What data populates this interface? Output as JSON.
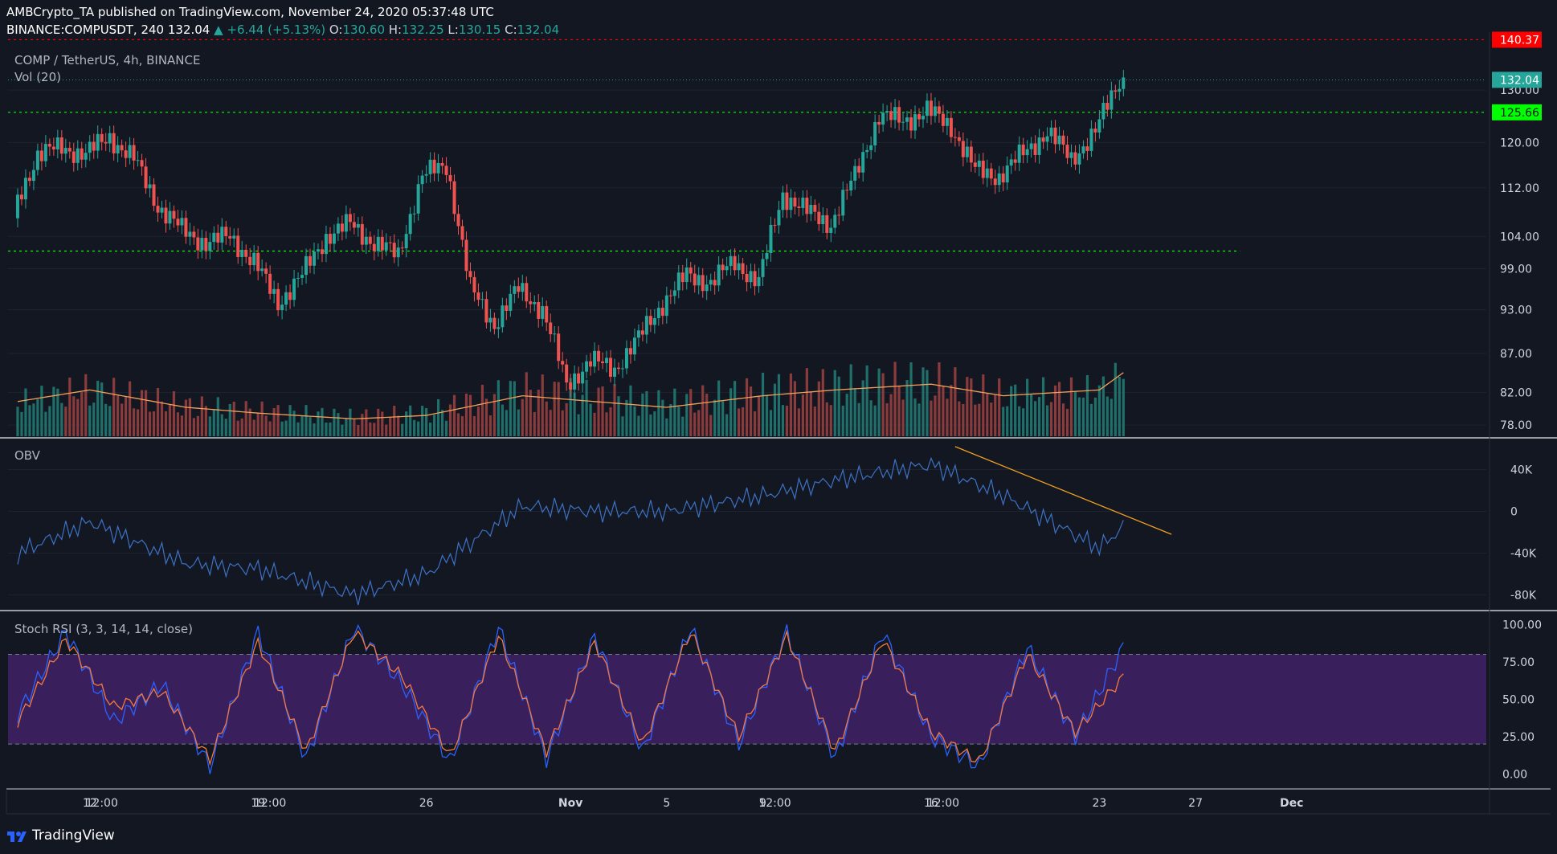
{
  "header": {
    "publisher": "AMBCrypto_TA published on TradingView.com, November 24, 2020 05:37:48 UTC",
    "symbol": "BINANCE:COMPUSDT, 240",
    "last": "132.04",
    "change": "▲ +6.44 (+5.13%)",
    "o_label": "O:",
    "o": "130.60",
    "h_label": "H:",
    "h": "132.25",
    "l_label": "L:",
    "l": "130.15",
    "c_label": "C:",
    "c": "132.04"
  },
  "main_pane": {
    "title": "COMP / TetherUS, 4h, BINANCE",
    "vol_label": "Vol (20)"
  },
  "obv_pane": {
    "label": "OBV"
  },
  "stoch_pane": {
    "label": "Stoch RSI (3, 3, 14, 14, close)"
  },
  "footer": {
    "brand": "TradingView"
  },
  "colors": {
    "bg": "#131722",
    "up": "#26a69a",
    "down": "#ef5350",
    "green_line": "#00ff00",
    "red_line": "#ff0000",
    "obv": "#3d72c5",
    "stoch_k": "#2962ff",
    "stoch_d": "#f5793b",
    "band": "#3a1f5d",
    "vol_ma": "#f0a05a",
    "trend": "#f0a020"
  },
  "chart_data": [
    {
      "type": "candlestick",
      "title": "COMP / TetherUS, 4h, BINANCE",
      "x_tick_labels": [
        "12",
        "12:00",
        "19",
        "12:00",
        "26",
        "Nov",
        "5",
        "9",
        "12:00",
        "16",
        "12:00",
        "23",
        "27",
        "Dec"
      ],
      "y_tick_labels": [
        78,
        82,
        87,
        93,
        99,
        104,
        112,
        120,
        130
      ],
      "ylim": [
        76.5,
        142
      ],
      "scale": "log",
      "horizontal_levels": [
        {
          "label": "140.37",
          "value": 140.37,
          "color": "#ff0000"
        },
        {
          "label": "125.66",
          "value": 125.66,
          "color": "#00ff00"
        },
        {
          "label": "",
          "value": 101.7,
          "color": "#00ff00"
        }
      ],
      "last_price": {
        "label": "132.04",
        "value": 132.04
      },
      "series": [
        {
          "name": "Close",
          "x": [
            "Oct 9",
            "Oct 10",
            "Oct 11",
            "Oct 12",
            "Oct 13",
            "Oct 14",
            "Oct 15",
            "Oct 16",
            "Oct 17",
            "Oct 18",
            "Oct 19",
            "Oct 20",
            "Oct 21",
            "Oct 22",
            "Oct 23",
            "Oct 24",
            "Oct 25",
            "Oct 26",
            "Oct 27",
            "Oct 28",
            "Oct 29",
            "Oct 30",
            "Oct 31",
            "Nov 1",
            "Nov 2",
            "Nov 3",
            "Nov 4",
            "Nov 5",
            "Nov 6",
            "Nov 7",
            "Nov 8",
            "Nov 9",
            "Nov 10",
            "Nov 11",
            "Nov 12",
            "Nov 13",
            "Nov 14",
            "Nov 15",
            "Nov 16",
            "Nov 17",
            "Nov 18",
            "Nov 19",
            "Nov 20",
            "Nov 21",
            "Nov 22",
            "Nov 23",
            "Nov 24"
          ],
          "values": [
            108,
            118,
            119,
            118,
            121,
            117,
            109,
            105,
            103,
            104,
            100,
            94,
            98,
            104,
            106,
            103,
            101,
            114,
            116,
            96,
            91,
            96,
            93,
            83,
            86,
            85,
            89,
            94,
            98,
            97,
            100,
            97,
            111,
            108,
            106,
            114,
            125,
            124,
            126,
            123,
            115,
            114,
            118,
            122,
            117,
            122,
            132.04
          ]
        }
      ]
    },
    {
      "type": "bar",
      "title": "Vol (20)",
      "x": [
        "Oct 9",
        "Oct 12",
        "Oct 16",
        "Oct 19",
        "Oct 23",
        "Oct 26",
        "Oct 30",
        "Nov 2",
        "Nov 5",
        "Nov 9",
        "Nov 12",
        "Nov 16",
        "Nov 19",
        "Nov 23",
        "Nov 24"
      ],
      "values": [
        30,
        40,
        25,
        20,
        15,
        18,
        35,
        30,
        25,
        35,
        40,
        45,
        35,
        40,
        55
      ]
    },
    {
      "type": "line",
      "title": "OBV",
      "y_tick_labels": [
        "40K",
        "0",
        "-40K",
        "-80K"
      ],
      "ylim": [
        -95000,
        65000
      ],
      "series": [
        {
          "name": "",
          "x": [
            "Oct 9",
            "Oct 12",
            "Oct 16",
            "Oct 19",
            "Oct 23",
            "Oct 26",
            "Oct 30",
            "Nov 2",
            "Nov 5",
            "Nov 9",
            "Nov 12",
            "Nov 16",
            "Nov 19",
            "Nov 23",
            "Nov 24"
          ],
          "values": [
            -40000,
            -10000,
            -50000,
            -55000,
            -80000,
            -60000,
            5000,
            0,
            0,
            15000,
            30000,
            45000,
            15000,
            -35000,
            -15000
          ]
        }
      ],
      "trendline": {
        "x": [
          "Nov 17",
          "Nov 26"
        ],
        "values": [
          62000,
          -22000
        ]
      }
    },
    {
      "type": "line",
      "title": "Stoch RSI (3, 3, 14, 14, close)",
      "y_tick_labels": [
        "100.00",
        "75.00",
        "50.00",
        "25.00",
        "0.00"
      ],
      "ylim": [
        -10,
        105
      ],
      "bands": [
        20,
        80
      ],
      "series": [
        {
          "name": "",
          "x": [
            "Oct 9",
            "Oct 11",
            "Oct 13",
            "Oct 15",
            "Oct 17",
            "Oct 19",
            "Oct 21",
            "Oct 23",
            "Oct 25",
            "Oct 27",
            "Oct 29",
            "Oct 31",
            "Nov 2",
            "Nov 4",
            "Nov 6",
            "Nov 8",
            "Nov 10",
            "Nov 12",
            "Nov 14",
            "Nov 16",
            "Nov 18",
            "Nov 20",
            "Nov 22",
            "Nov 24"
          ],
          "values": [
            40,
            95,
            35,
            60,
            5,
            95,
            10,
            98,
            60,
            8,
            98,
            10,
            92,
            15,
            98,
            20,
            95,
            10,
            95,
            25,
            5,
            85,
            25,
            85
          ]
        },
        {
          "name": "",
          "x": [
            "Oct 9",
            "Oct 11",
            "Oct 13",
            "Oct 15",
            "Oct 17",
            "Oct 19",
            "Oct 21",
            "Oct 23",
            "Oct 25",
            "Oct 27",
            "Oct 29",
            "Oct 31",
            "Nov 2",
            "Nov 4",
            "Nov 6",
            "Nov 8",
            "Nov 10",
            "Nov 12",
            "Nov 14",
            "Nov 16",
            "Nov 18",
            "Nov 20",
            "Nov 22",
            "Nov 24"
          ],
          "values": [
            35,
            90,
            45,
            55,
            10,
            88,
            15,
            95,
            65,
            12,
            92,
            15,
            88,
            20,
            95,
            25,
            92,
            15,
            90,
            28,
            8,
            80,
            28,
            65
          ]
        }
      ]
    }
  ]
}
